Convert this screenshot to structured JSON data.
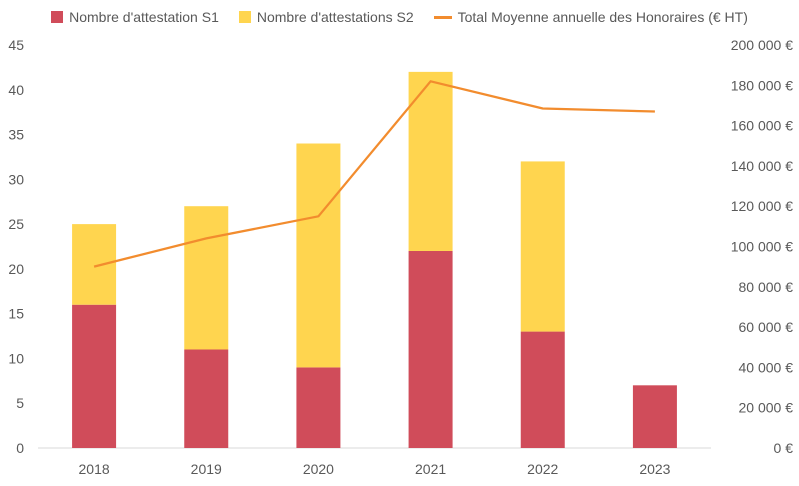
{
  "colors": {
    "s1": "#D04C5A",
    "s2": "#FFD54F",
    "line": "#F28C2E",
    "axis": "#595959",
    "grid": "#D9D9D9"
  },
  "legend": [
    {
      "label": "Nombre d'attestation S1"
    },
    {
      "label": "Nombre d'attestations S2"
    },
    {
      "label": "Total Moyenne annuelle des Honoraires (€ HT)"
    }
  ],
  "chart_data": {
    "type": "bar",
    "stacked": true,
    "categories": [
      "2018",
      "2019",
      "2020",
      "2021",
      "2022",
      "2023"
    ],
    "series": [
      {
        "name": "Nombre d'attestation S1",
        "type": "bar",
        "axis": "left",
        "values": [
          16,
          11,
          9,
          22,
          13,
          7
        ]
      },
      {
        "name": "Nombre d'attestations S2",
        "type": "bar",
        "axis": "left",
        "values": [
          9,
          16,
          25,
          20,
          19,
          0
        ]
      },
      {
        "name": "Total Moyenne annuelle des Honoraires (€ HT)",
        "type": "line",
        "axis": "right",
        "values": [
          90000,
          104000,
          115000,
          182000,
          168500,
          167000
        ]
      }
    ],
    "ylim": [
      0,
      45
    ],
    "y2lim": [
      0,
      200000
    ],
    "y_ticks": [
      "0",
      "5",
      "10",
      "15",
      "20",
      "25",
      "30",
      "35",
      "40",
      "45"
    ],
    "y2_ticks": [
      "0 €",
      "20 000 €",
      "40 000 €",
      "60 000 €",
      "80 000 €",
      "100 000 €",
      "120 000 €",
      "140 000 €",
      "160 000 €",
      "180 000 €",
      "200 000 €"
    ],
    "grid": false,
    "legend_position": "top"
  }
}
